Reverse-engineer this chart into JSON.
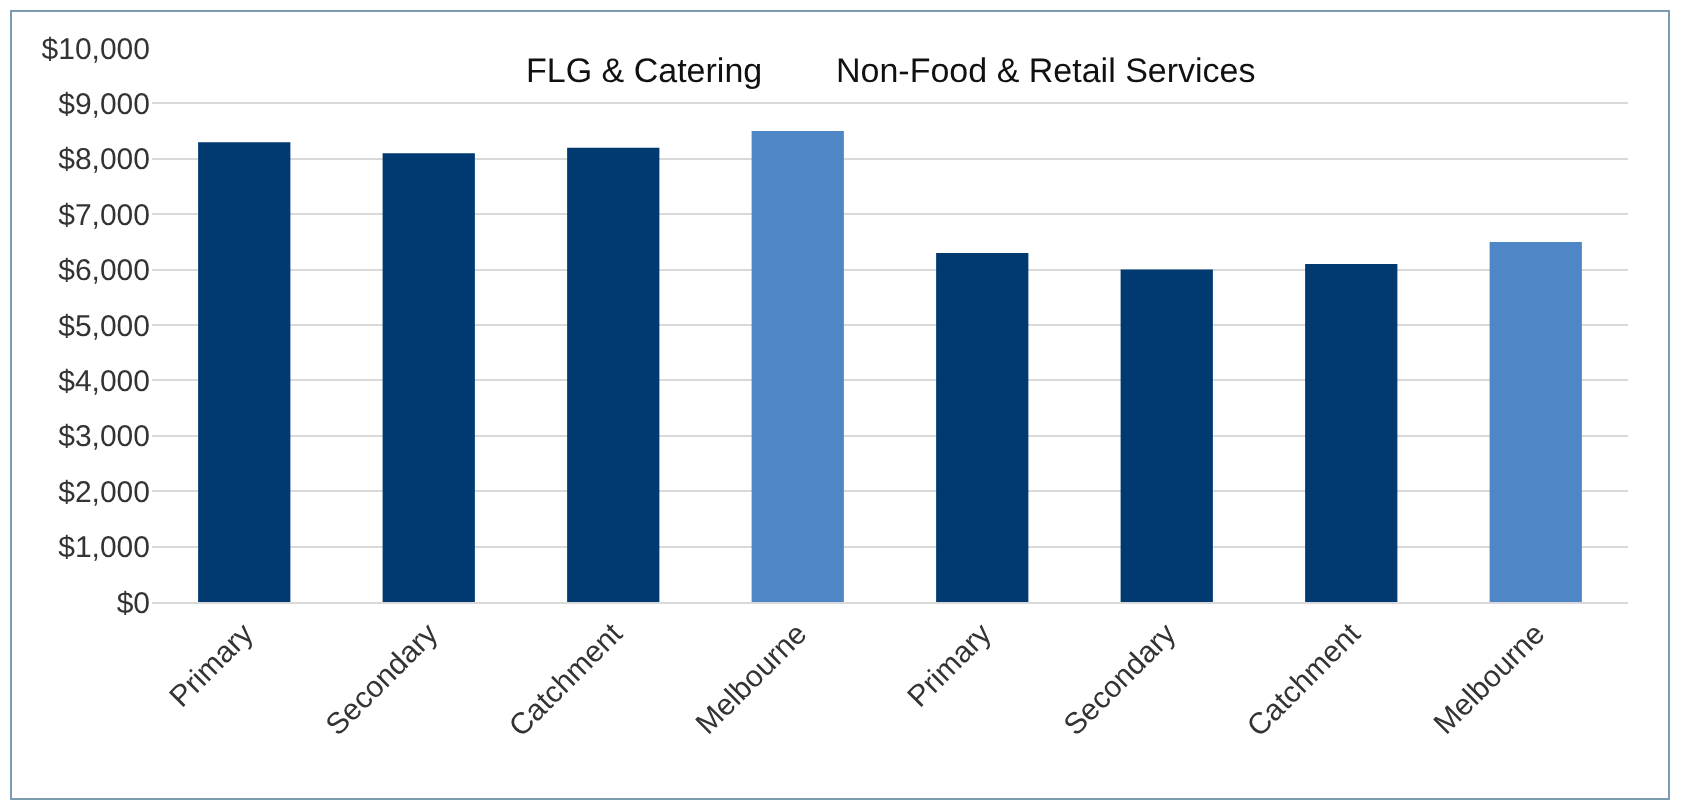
{
  "chart_data": {
    "type": "bar",
    "categories": [
      "Primary",
      "Secondary",
      "Catchment",
      "Melbourne",
      "Primary",
      "Secondary",
      "Catchment",
      "Melbourne"
    ],
    "values": [
      8300,
      8100,
      8200,
      8500,
      6300,
      6000,
      6100,
      6500
    ],
    "colors": [
      "#003a70",
      "#003a70",
      "#003a70",
      "#4f86c6",
      "#003a70",
      "#003a70",
      "#003a70",
      "#4f86c6"
    ],
    "ylim": [
      0,
      10000
    ],
    "yticks": [
      {
        "value": 0,
        "label": "$0"
      },
      {
        "value": 1000,
        "label": "$1,000"
      },
      {
        "value": 2000,
        "label": "$2,000"
      },
      {
        "value": 3000,
        "label": "$3,000"
      },
      {
        "value": 4000,
        "label": "$4,000"
      },
      {
        "value": 5000,
        "label": "$5,000"
      },
      {
        "value": 6000,
        "label": "$6,000"
      },
      {
        "value": 7000,
        "label": "$7,000"
      },
      {
        "value": 8000,
        "label": "$8,000"
      },
      {
        "value": 9000,
        "label": "$9,000"
      },
      {
        "value": 10000,
        "label": "$10,000"
      }
    ],
    "annotations": [
      "FLG & Catering",
      "Non-Food & Retail Services"
    ],
    "grid": true
  }
}
